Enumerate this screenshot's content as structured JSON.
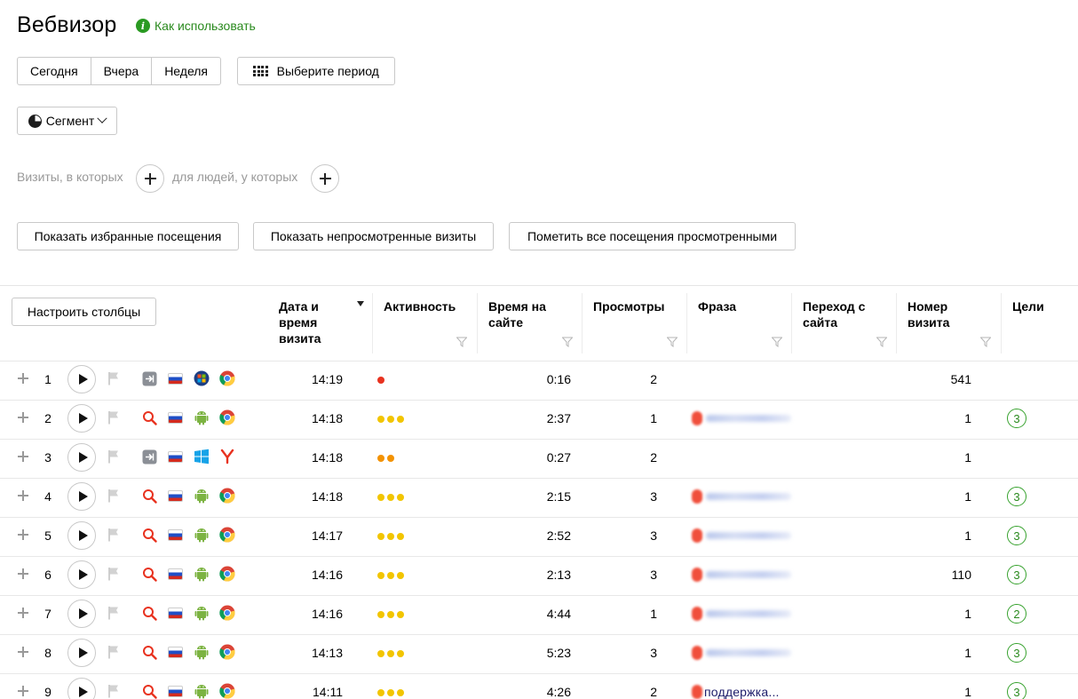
{
  "header": {
    "title": "Вебвизор",
    "howto_label": "Как использовать"
  },
  "period": {
    "today": "Сегодня",
    "yesterday": "Вчера",
    "week": "Неделя",
    "choose_period": "Выберите период"
  },
  "segment": {
    "label": "Сегмент"
  },
  "conditions": {
    "visits_label": "Визиты, в которых",
    "people_label": "для людей, у которых"
  },
  "actions": {
    "show_favorites": "Показать избранные посещения",
    "show_unviewed": "Показать непросмотренные визиты",
    "mark_all_viewed": "Пометить все посещения просмотренными"
  },
  "table": {
    "configure_columns": "Настроить столбцы",
    "columns": {
      "datetime": "Дата и время визита",
      "activity": "Активность",
      "duration": "Время на сайте",
      "views": "Просмотры",
      "phrase": "Фраза",
      "referrer": "Переход с сайта",
      "visit_number": "Номер визита",
      "goals": "Цели"
    },
    "rows": [
      {
        "num": "1",
        "source": "direct",
        "os": "windows7",
        "browser": "chrome",
        "time": "14:19",
        "activity": [
          "#e8321f"
        ],
        "duration": "0:16",
        "views": "2",
        "phrase": "",
        "visit_number": "541",
        "goals": ""
      },
      {
        "num": "2",
        "source": "search",
        "os": "android",
        "browser": "chrome",
        "time": "14:18",
        "activity": [
          "#f2c500",
          "#f2c500",
          "#f2c500"
        ],
        "duration": "2:37",
        "views": "1",
        "phrase": "blurred",
        "visit_number": "1",
        "goals": "3"
      },
      {
        "num": "3",
        "source": "direct",
        "os": "windows10",
        "browser": "yandex",
        "time": "14:18",
        "activity": [
          "#f39200",
          "#f39200"
        ],
        "duration": "0:27",
        "views": "2",
        "phrase": "",
        "visit_number": "1",
        "goals": ""
      },
      {
        "num": "4",
        "source": "search",
        "os": "android",
        "browser": "chrome",
        "time": "14:18",
        "activity": [
          "#f2c500",
          "#f2c500",
          "#f2c500"
        ],
        "duration": "2:15",
        "views": "3",
        "phrase": "blurred",
        "visit_number": "1",
        "goals": "3"
      },
      {
        "num": "5",
        "source": "search",
        "os": "android",
        "browser": "chrome",
        "time": "14:17",
        "activity": [
          "#f2c500",
          "#f2c500",
          "#f2c500"
        ],
        "duration": "2:52",
        "views": "3",
        "phrase": "blurred",
        "visit_number": "1",
        "goals": "3"
      },
      {
        "num": "6",
        "source": "search",
        "os": "android",
        "browser": "chrome",
        "time": "14:16",
        "activity": [
          "#f2c500",
          "#f2c500",
          "#f2c500"
        ],
        "duration": "2:13",
        "views": "3",
        "phrase": "blurred",
        "visit_number": "110",
        "goals": "3"
      },
      {
        "num": "7",
        "source": "search",
        "os": "android",
        "browser": "chrome",
        "time": "14:16",
        "activity": [
          "#f2c500",
          "#f2c500",
          "#f2c500"
        ],
        "duration": "4:44",
        "views": "1",
        "phrase": "blurred",
        "visit_number": "1",
        "goals": "2"
      },
      {
        "num": "8",
        "source": "search",
        "os": "android",
        "browser": "chrome",
        "time": "14:13",
        "activity": [
          "#f2c500",
          "#f2c500",
          "#f2c500"
        ],
        "duration": "5:23",
        "views": "3",
        "phrase": "blurred",
        "visit_number": "1",
        "goals": "3"
      },
      {
        "num": "9",
        "source": "search",
        "os": "android",
        "browser": "chrome",
        "time": "14:11",
        "activity": [
          "#f2c500",
          "#f2c500",
          "#f2c500"
        ],
        "duration": "4:26",
        "views": "2",
        "phrase": "поддержка...",
        "visit_number": "1",
        "goals": "3"
      }
    ]
  },
  "colors": {
    "accent_green": "#2a8a1e",
    "activity_high": "#f2c500",
    "activity_mid": "#f39200",
    "activity_low": "#e8321f"
  }
}
